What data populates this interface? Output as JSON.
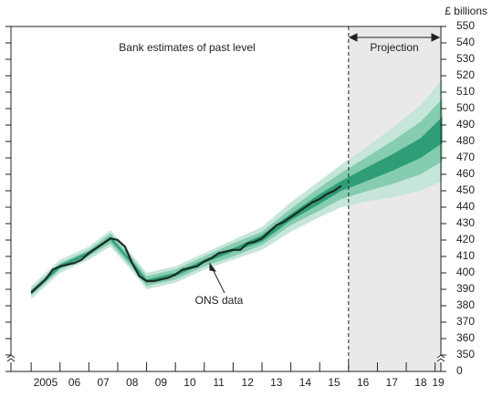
{
  "chart_data": {
    "type": "fan",
    "y_axis_label": "£ billions",
    "annotations": [
      "Bank estimates of past level",
      "Projection",
      "ONS data"
    ],
    "xlim": [
      2004.3,
      2019.2
    ],
    "xticks": [
      {
        "value": 2005,
        "label": "2005"
      },
      {
        "value": 2006,
        "label": "06"
      },
      {
        "value": 2007,
        "label": "07"
      },
      {
        "value": 2008,
        "label": "08"
      },
      {
        "value": 2009,
        "label": "09"
      },
      {
        "value": 2010,
        "label": "10"
      },
      {
        "value": 2011,
        "label": "11"
      },
      {
        "value": 2012,
        "label": "12"
      },
      {
        "value": 2013,
        "label": "13"
      },
      {
        "value": 2014,
        "label": "14"
      },
      {
        "value": 2015,
        "label": "15"
      },
      {
        "value": 2016,
        "label": "16"
      },
      {
        "value": 2017,
        "label": "17"
      },
      {
        "value": 2018,
        "label": "18"
      },
      {
        "value": 2019,
        "label": "19"
      }
    ],
    "ylim": [
      0,
      550
    ],
    "axis_break": [
      0,
      340
    ],
    "yticks": [
      0,
      350,
      360,
      370,
      380,
      390,
      400,
      410,
      420,
      430,
      440,
      450,
      460,
      470,
      480,
      490,
      500,
      510,
      520,
      530,
      540,
      550
    ],
    "projection_start": 2016,
    "projection_color": "#e9e9e9",
    "fan": {
      "x": [
        2005,
        2006,
        2007,
        2007.75,
        2008.5,
        2009,
        2010,
        2011,
        2012,
        2013,
        2014,
        2015,
        2015.75,
        2016.5,
        2017.5,
        2018.5,
        2019.25
      ],
      "bands": [
        {
          "color": "#c6e6d9",
          "lower": [
            384,
            400,
            408,
            416,
            401,
            390,
            394,
            402,
            408,
            414,
            425,
            434,
            440,
            443,
            446,
            450,
            456
          ],
          "upper": [
            392,
            408,
            416,
            426,
            411,
            400,
            404,
            412,
            420,
            428,
            443,
            456,
            466,
            475,
            488,
            502,
            518
          ]
        },
        {
          "color": "#86ccb0",
          "lower": [
            386,
            402,
            410,
            418,
            403,
            392,
            396,
            404,
            410,
            417,
            429,
            438,
            445,
            449,
            454,
            460,
            468
          ],
          "upper": [
            390,
            406,
            414,
            424,
            409,
            398,
            402,
            410,
            418,
            425,
            439,
            452,
            461,
            469,
            480,
            492,
            506
          ]
        },
        {
          "color": "#2f9e76",
          "lower": [
            387,
            403,
            411,
            420,
            405,
            394,
            398,
            406,
            413,
            419,
            432,
            442,
            450,
            455,
            462,
            470,
            479
          ],
          "upper": [
            389,
            405,
            413,
            422,
            407,
            396,
            400,
            408,
            415,
            423,
            436,
            448,
            456,
            463,
            472,
            482,
            495
          ]
        }
      ]
    },
    "series": [
      {
        "name": "ONS data",
        "color": "#1b2b26",
        "x": [
          2005,
          2005.25,
          2005.5,
          2005.75,
          2006,
          2006.25,
          2006.5,
          2006.75,
          2007,
          2007.25,
          2007.5,
          2007.75,
          2008,
          2008.25,
          2008.5,
          2008.75,
          2009,
          2009.25,
          2009.5,
          2009.75,
          2010,
          2010.25,
          2010.5,
          2010.75,
          2011,
          2011.25,
          2011.5,
          2011.75,
          2012,
          2012.25,
          2012.5,
          2012.75,
          2013,
          2013.25,
          2013.5,
          2013.75,
          2014,
          2014.25,
          2014.5,
          2014.75,
          2015,
          2015.25,
          2015.5,
          2015.75
        ],
        "values": [
          388,
          392,
          396,
          402,
          404,
          405,
          406,
          408,
          412,
          415,
          418,
          421,
          420,
          416,
          406,
          398,
          395,
          395,
          396,
          397,
          399,
          402,
          403,
          404,
          407,
          409,
          412,
          413,
          414,
          414,
          418,
          419,
          421,
          425,
          429,
          431,
          434,
          437,
          440,
          443,
          445,
          448,
          450,
          453
        ]
      }
    ]
  }
}
